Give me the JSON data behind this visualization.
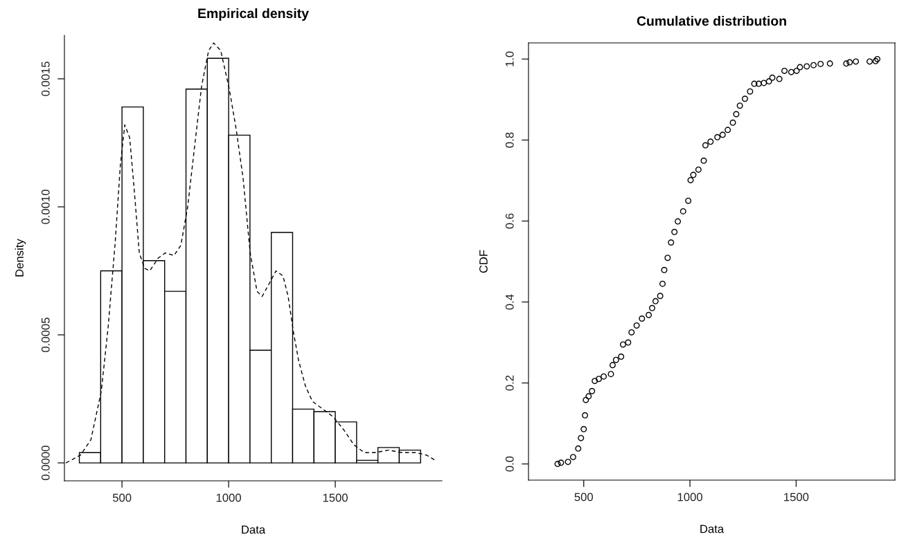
{
  "chart_data": [
    {
      "type": "histogram",
      "title": "Empirical density",
      "xlabel": "Data",
      "ylabel": "Density",
      "bins": [
        300,
        400,
        500,
        600,
        700,
        800,
        900,
        1000,
        1100,
        1200,
        1300,
        1400,
        1500,
        1600,
        1700,
        1800,
        1900
      ],
      "values": [
        4e-05,
        0.00075,
        0.00139,
        0.00079,
        0.00067,
        0.00146,
        0.00158,
        0.00128,
        0.00044,
        0.0009,
        0.00021,
        0.0002,
        0.00016,
        1e-05,
        6e-05,
        5e-05
      ],
      "color": "#ffffff",
      "series": [
        {
          "type": "line",
          "color": "#000000",
          "line_style": "dashed",
          "x": [
            237,
            305,
            354,
            403,
            435,
            468,
            492,
            513,
            536,
            557,
            581,
            606,
            630,
            670,
            703,
            744,
            776,
            808,
            841,
            873,
            906,
            930,
            963,
            1003,
            1036,
            1068,
            1101,
            1133,
            1157,
            1190,
            1222,
            1255,
            1279,
            1304,
            1328,
            1360,
            1393,
            1442,
            1490,
            1539,
            1588,
            1636,
            1685,
            1750,
            1815,
            1880,
            1929,
            1969
          ],
          "values": [
            0,
            3e-05,
            9e-05,
            0.00028,
            0.00053,
            0.00086,
            0.00116,
            0.00132,
            0.00127,
            0.00107,
            0.00082,
            0.00076,
            0.00075,
            0.0008,
            0.00082,
            0.00081,
            0.00085,
            0.001,
            0.00124,
            0.00147,
            0.00161,
            0.00164,
            0.00161,
            0.00146,
            0.0013,
            0.00111,
            0.00082,
            0.00067,
            0.00065,
            0.0007,
            0.00075,
            0.00073,
            0.00065,
            0.00051,
            0.0004,
            0.0003,
            0.00024,
            0.00021,
            0.00018,
            0.00013,
            7e-05,
            4e-05,
            4e-05,
            5e-05,
            4e-05,
            4e-05,
            3e-05,
            1e-05
          ]
        }
      ],
      "xlim": [
        230,
        2000
      ],
      "ylim": [
        -7e-05,
        0.00167
      ],
      "xticks": [
        500,
        1000,
        1500
      ],
      "yticks": [
        {
          "value": 0,
          "label": "0.0000"
        },
        {
          "value": 0.0005,
          "label": "0.0005"
        },
        {
          "value": 0.001,
          "label": "0.0010"
        },
        {
          "value": 0.0015,
          "label": "0.0015"
        }
      ],
      "grid": false
    },
    {
      "type": "scatter",
      "title": "Cumulative distribution",
      "xlabel": "Data",
      "ylabel": "CDF",
      "marker": "circle",
      "color": "#000000",
      "x": [
        377,
        393,
        426,
        450,
        474,
        487,
        500,
        506,
        510,
        523,
        539,
        552,
        571,
        594,
        628,
        636,
        652,
        676,
        685,
        709,
        725,
        749,
        774,
        806,
        822,
        838,
        860,
        871,
        879,
        895,
        911,
        927,
        943,
        968,
        992,
        1003,
        1016,
        1040,
        1065,
        1073,
        1097,
        1129,
        1154,
        1178,
        1202,
        1218,
        1235,
        1259,
        1283,
        1303,
        1324,
        1348,
        1372,
        1388,
        1421,
        1445,
        1477,
        1502,
        1518,
        1550,
        1582,
        1615,
        1659,
        1736,
        1752,
        1781,
        1846,
        1874,
        1882
      ],
      "values": [
        0,
        0.003,
        0.005,
        0.017,
        0.038,
        0.064,
        0.086,
        0.12,
        0.158,
        0.167,
        0.18,
        0.205,
        0.21,
        0.216,
        0.222,
        0.244,
        0.257,
        0.265,
        0.295,
        0.3,
        0.325,
        0.342,
        0.359,
        0.368,
        0.385,
        0.402,
        0.415,
        0.445,
        0.479,
        0.509,
        0.547,
        0.573,
        0.599,
        0.624,
        0.65,
        0.701,
        0.714,
        0.727,
        0.749,
        0.787,
        0.796,
        0.807,
        0.813,
        0.825,
        0.843,
        0.864,
        0.885,
        0.902,
        0.92,
        0.939,
        0.939,
        0.941,
        0.945,
        0.954,
        0.951,
        0.971,
        0.968,
        0.971,
        0.98,
        0.982,
        0.985,
        0.988,
        0.989,
        0.989,
        0.992,
        0.994,
        0.994,
        0.995,
        1.0
      ],
      "xlim": [
        240,
        1965
      ],
      "ylim": [
        -0.04,
        1.04
      ],
      "xticks": [
        500,
        1000,
        1500
      ],
      "yticks": [
        {
          "value": 0,
          "label": "0.0"
        },
        {
          "value": 0.2,
          "label": "0.2"
        },
        {
          "value": 0.4,
          "label": "0.4"
        },
        {
          "value": 0.6,
          "label": "0.6"
        },
        {
          "value": 0.8,
          "label": "0.8"
        },
        {
          "value": 1.0,
          "label": "1.0"
        }
      ],
      "grid": false
    }
  ]
}
